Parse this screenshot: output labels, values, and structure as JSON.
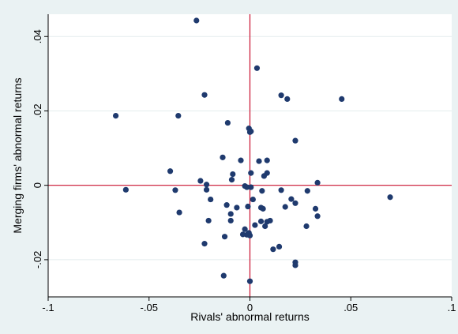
{
  "chart_data": {
    "type": "scatter",
    "title": "",
    "xlabel": "Rivals' abnormal returns",
    "ylabel": "Merging firms' abnormal returns",
    "xlim": [
      -0.1,
      0.1
    ],
    "ylim": [
      -0.03,
      0.046
    ],
    "xticks": [
      -0.1,
      -0.05,
      0,
      0.05,
      0.1
    ],
    "xtick_labels": [
      "-.1",
      "-.05",
      "0",
      ".05",
      ".1"
    ],
    "yticks": [
      -0.02,
      0,
      0.02,
      0.04
    ],
    "ytick_labels": [
      "-.02",
      "0",
      ".02",
      ".04"
    ],
    "reference_lines": {
      "x": 0,
      "y": 0,
      "color": "#c8102e"
    },
    "grid": "horizontal",
    "marker_color": "#1f3a6e",
    "background_color": "#eaf2f3",
    "plot_background_color": "#ffffff",
    "series": [
      {
        "x": [
          -0.0265,
          0.0035,
          -0.0225,
          0.0155,
          0.0185,
          0.0455,
          -0.0665,
          -0.0355,
          -0.011,
          0.0,
          0.0005,
          -0.0005,
          0.0225,
          0.0045,
          0.0085,
          -0.0045,
          -0.0135,
          -0.0395,
          -0.0245,
          0.0085,
          0.0005,
          -0.0085,
          0.007,
          -0.009,
          -0.0215,
          -0.0615,
          -0.037,
          -0.0025,
          -0.0015,
          0.0005,
          0.0155,
          0.006,
          0.0285,
          -0.0215,
          -0.0195,
          0.0205,
          0.0225,
          0.0335,
          -0.0115,
          -0.0065,
          -0.001,
          0.0055,
          0.0175,
          0.0065,
          0.0325,
          -0.035,
          -0.0095,
          -0.0205,
          -0.0095,
          0.01,
          0.0085,
          0.0055,
          0.0025,
          0.0335,
          0.0075,
          0.0145,
          0.028,
          0.0115,
          0.0225,
          0.0225,
          -0.0225,
          0.0,
          -0.0015,
          -0.0125,
          -0.0005,
          -0.0025,
          -0.0035,
          0.0015,
          0.0695,
          0.0,
          -0.013
        ],
        "y": [
          0.0443,
          0.0315,
          0.0243,
          0.0242,
          0.0232,
          0.0232,
          0.0187,
          0.0187,
          0.0168,
          0.0143,
          0.0145,
          0.0153,
          0.012,
          0.0065,
          0.0067,
          0.0067,
          0.0075,
          0.0038,
          0.0012,
          0.0033,
          0.0033,
          0.003,
          0.0025,
          0.0015,
          0.0002,
          -0.0012,
          -0.0013,
          -0.0002,
          -0.0005,
          -0.0005,
          -0.0013,
          -0.0015,
          -0.0015,
          -0.0012,
          -0.0038,
          -0.0037,
          -0.0048,
          0.0007,
          -0.0053,
          -0.006,
          -0.0057,
          -0.006,
          -0.0058,
          -0.0063,
          -0.0063,
          -0.0073,
          -0.0077,
          -0.0095,
          -0.0095,
          -0.0095,
          -0.0098,
          -0.0097,
          -0.0107,
          -0.0083,
          -0.011,
          -0.0165,
          -0.011,
          -0.0172,
          -0.0207,
          -0.0215,
          -0.0157,
          -0.0135,
          -0.0133,
          -0.0138,
          -0.0128,
          -0.0118,
          -0.0132,
          -0.0038,
          -0.0032,
          -0.0258,
          -0.0243
        ]
      }
    ]
  }
}
